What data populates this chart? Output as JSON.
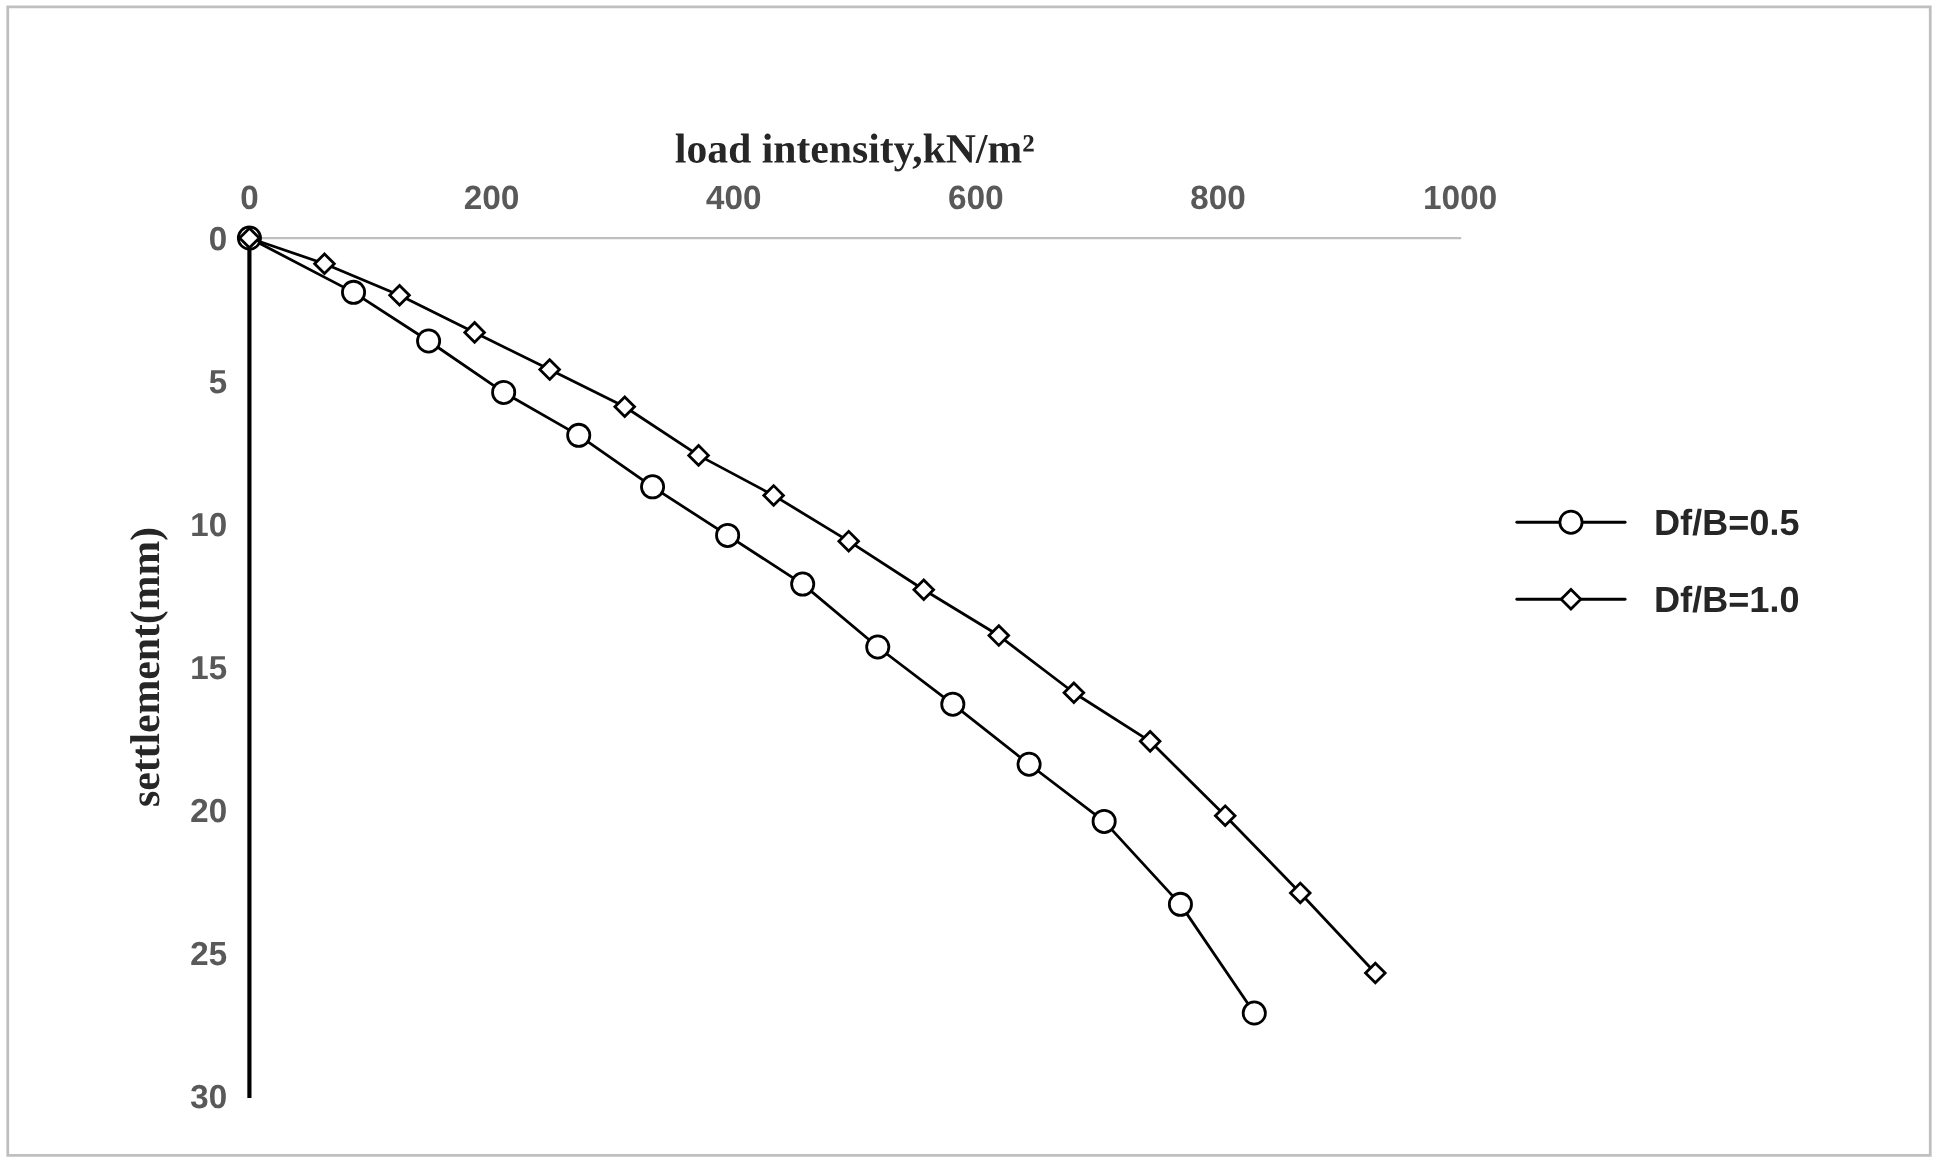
{
  "chart_data": {
    "type": "line",
    "xlabel": "load intensity,kN/m²",
    "ylabel": "settlement(mm)",
    "xlim": [
      0,
      1000
    ],
    "xticks": [
      0,
      200,
      400,
      600,
      800,
      1000
    ],
    "ylim": [
      30,
      0
    ],
    "yticks": [
      0,
      5,
      10,
      15,
      20,
      25,
      30
    ],
    "grid": false,
    "legend": "right",
    "line_style": "solid",
    "series": [
      {
        "name": "Df/B=0.5",
        "color": "#000000",
        "marker": "circle",
        "x": [
          0,
          86,
          148,
          210,
          272,
          333,
          395,
          457,
          519,
          581,
          644,
          706,
          769,
          830
        ],
        "values": [
          0,
          1.9,
          3.6,
          5.4,
          6.9,
          8.7,
          10.4,
          12.1,
          14.3,
          16.3,
          18.4,
          20.4,
          23.3,
          27.1
        ]
      },
      {
        "name": "Df/B=1.0",
        "color": "#000000",
        "marker": "diamond",
        "x": [
          0,
          62,
          124,
          186,
          248,
          310,
          371,
          433,
          495,
          557,
          619,
          681,
          744,
          806,
          868,
          930
        ],
        "values": [
          0,
          0.9,
          2.0,
          3.3,
          4.6,
          5.9,
          7.6,
          9.0,
          10.6,
          12.3,
          13.9,
          15.9,
          17.6,
          20.2,
          22.9,
          25.7
        ]
      }
    ]
  }
}
